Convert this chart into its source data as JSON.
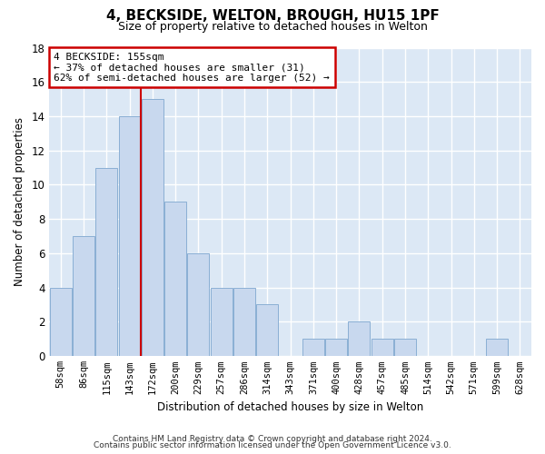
{
  "title": "4, BECKSIDE, WELTON, BROUGH, HU15 1PF",
  "subtitle": "Size of property relative to detached houses in Welton",
  "xlabel": "Distribution of detached houses by size in Welton",
  "ylabel": "Number of detached properties",
  "footnote1": "Contains HM Land Registry data © Crown copyright and database right 2024.",
  "footnote2": "Contains public sector information licensed under the Open Government Licence v3.0.",
  "bin_labels": [
    "58sqm",
    "86sqm",
    "115sqm",
    "143sqm",
    "172sqm",
    "200sqm",
    "229sqm",
    "257sqm",
    "286sqm",
    "314sqm",
    "343sqm",
    "371sqm",
    "400sqm",
    "428sqm",
    "457sqm",
    "485sqm",
    "514sqm",
    "542sqm",
    "571sqm",
    "599sqm",
    "628sqm"
  ],
  "bin_values": [
    4,
    7,
    11,
    14,
    15,
    9,
    6,
    4,
    4,
    3,
    0,
    1,
    1,
    2,
    1,
    1,
    0,
    0,
    0,
    1,
    0
  ],
  "bar_color": "#c8d8ee",
  "bar_edge_color": "#8aafd4",
  "annotation_title": "4 BECKSIDE: 155sqm",
  "annotation_line1": "← 37% of detached houses are smaller (31)",
  "annotation_line2": "62% of semi-detached houses are larger (52) →",
  "vline_bin_index": 3,
  "ylim": [
    0,
    18
  ],
  "yticks": [
    0,
    2,
    4,
    6,
    8,
    10,
    12,
    14,
    16,
    18
  ],
  "annotation_box_color": "#ffffff",
  "annotation_border_color": "#cc0000",
  "vline_color": "#cc0000",
  "plot_bg_color": "#dce8f5",
  "fig_bg_color": "#ffffff"
}
